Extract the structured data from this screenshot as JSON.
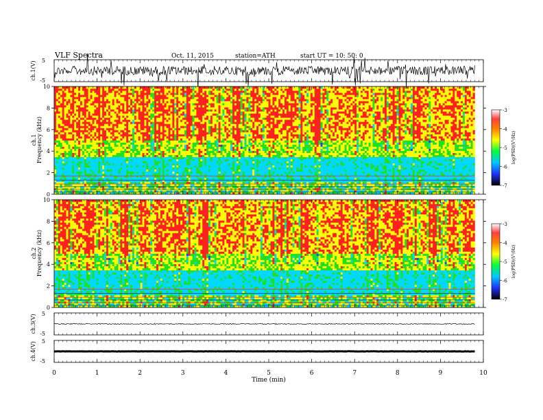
{
  "header": {
    "title": "VLF  Spectra",
    "date": "Oct. 11, 2015",
    "station": "station=ATH",
    "start": "start  UT  =   10: 50: 0"
  },
  "chart_data": [
    {
      "type": "line",
      "name": "ch1-waveform",
      "ylabel": "ch.1(V)",
      "ylim": [
        -5,
        5
      ],
      "yticks": [
        "5",
        "-5"
      ],
      "xlim": [
        0,
        10
      ]
    },
    {
      "type": "heatmap",
      "name": "ch1-spectrogram",
      "ylabel": "ch.1\nFrequency  (kHz)",
      "ylim": [
        0,
        10
      ],
      "yticks": [
        "0",
        "2",
        "4",
        "6",
        "8",
        "10"
      ],
      "xlim": [
        0,
        10
      ],
      "data_end_min": 9.8,
      "colorbar": {
        "label": "log(PSD)(V²/Hz)",
        "range": [
          -7,
          -3
        ],
        "ticks": [
          "-3",
          "-4",
          "-5",
          "-6",
          "-7"
        ]
      }
    },
    {
      "type": "heatmap",
      "name": "ch2-spectrogram",
      "ylabel": "ch.2\nFrequency  (kHz)",
      "ylim": [
        0,
        10
      ],
      "yticks": [
        "0",
        "2",
        "4",
        "6",
        "8",
        "10"
      ],
      "xlim": [
        0,
        10
      ],
      "data_end_min": 9.8,
      "colorbar": {
        "label": "log(PSD)(V²/Hz)",
        "range": [
          -7,
          -3
        ],
        "ticks": [
          "-3",
          "-4",
          "-5",
          "-6",
          "-7"
        ]
      }
    },
    {
      "type": "line",
      "name": "ch3-waveform",
      "ylabel": "ch.3(V)",
      "ylim": [
        -5,
        5
      ],
      "yticks": [
        "5",
        "-5"
      ],
      "xlim": [
        0,
        10
      ]
    },
    {
      "type": "line",
      "name": "ch4-waveform",
      "ylabel": "ch.4(V)",
      "ylim": [
        -5,
        5
      ],
      "yticks": [
        "5",
        "-5"
      ],
      "xlim": [
        0,
        10
      ]
    }
  ],
  "xaxis": {
    "label": "Time  (min)",
    "ticks": [
      "0",
      "1",
      "2",
      "3",
      "4",
      "5",
      "6",
      "7",
      "8",
      "9",
      "10"
    ]
  },
  "colors": {
    "red": "#ff2020",
    "yellow": "#ffff00",
    "green": "#20e020",
    "cyan": "#00d8ff",
    "blue": "#2040ff",
    "darkblue": "#000090",
    "black": "#000000"
  }
}
